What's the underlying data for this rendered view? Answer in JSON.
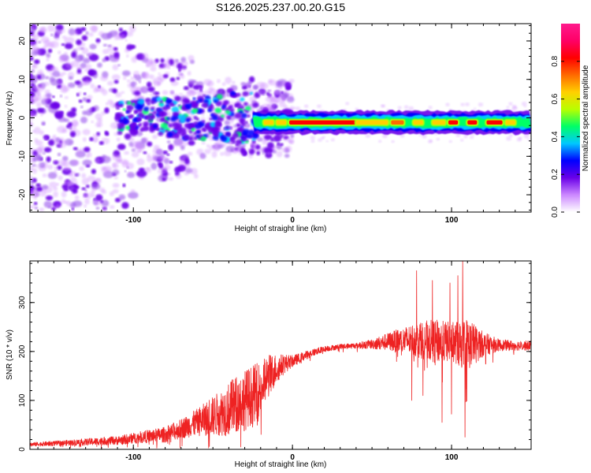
{
  "title": "S126.2025.237.00.20.G15",
  "colors": {
    "snr_line": "#ee2222",
    "background": "#ffffff",
    "colorbar_stops": [
      "#ffffff",
      "#cc88ff",
      "#6a00e8",
      "#0000ff",
      "#00c8ff",
      "#00ff66",
      "#b8ff00",
      "#ffd000",
      "#ff6a00",
      "#ff0000",
      "#ff0066",
      "#ff1a8c"
    ]
  },
  "chart_data": [
    {
      "type": "heatmap",
      "title": "S126.2025.237.00.20.G15",
      "xlabel": "Height of straight line (km)",
      "ylabel": "Frequency (Hz)",
      "xlim": [
        -165,
        150
      ],
      "ylim": [
        -24.5,
        24.5
      ],
      "xticks": [
        -100,
        0,
        100
      ],
      "yticks": [
        20,
        10,
        0,
        -10,
        -20
      ],
      "colorbar": {
        "label": "Normalized spectral amplitude",
        "range": [
          0,
          1
        ],
        "ticks": [
          "0.0",
          "0.2",
          "0.4",
          "0.6",
          "0.8"
        ],
        "tick_values": [
          0.0,
          0.2,
          0.4,
          0.6,
          0.8
        ]
      },
      "description_features": {
        "ridge_frequency_hz": -1.2,
        "ridge_start_km": -25,
        "ridge_end_km": 150,
        "noisy_region_end_km": -25
      }
    },
    {
      "type": "line",
      "xlabel": "Height of straight line (km)",
      "ylabel": "SNR (10 * v/v)",
      "xlim": [
        -165,
        150
      ],
      "ylim": [
        0,
        385
      ],
      "xticks": [
        -100,
        0,
        100
      ],
      "yticks": [
        0,
        100,
        200,
        300
      ],
      "series": [
        {
          "name": "SNR",
          "x": [
            -165,
            -150,
            -130,
            -110,
            -95,
            -80,
            -70,
            -60,
            -50,
            -40,
            -35,
            -30,
            -25,
            -20,
            -15,
            -10,
            -5,
            0,
            5,
            10,
            20,
            30,
            40,
            50,
            60,
            70,
            80,
            90,
            100,
            110,
            120,
            130,
            140,
            150
          ],
          "values": [
            10,
            12,
            15,
            18,
            25,
            30,
            42,
            55,
            68,
            82,
            92,
            100,
            112,
            125,
            150,
            165,
            175,
            180,
            187,
            195,
            205,
            210,
            212,
            215,
            220,
            222,
            225,
            220,
            220,
            215,
            215,
            213,
            212,
            212
          ],
          "noise_amplitude": [
            4,
            5,
            7,
            9,
            12,
            16,
            20,
            28,
            40,
            55,
            60,
            62,
            60,
            55,
            45,
            30,
            20,
            12,
            10,
            8,
            6,
            5,
            6,
            10,
            18,
            28,
            38,
            45,
            40,
            55,
            25,
            12,
            10,
            10
          ],
          "spikes": [
            {
              "x": 78,
              "y": 365
            },
            {
              "x": 88,
              "y": 345
            },
            {
              "x": 99,
              "y": 340
            },
            {
              "x": 104,
              "y": 355
            },
            {
              "x": 107,
              "y": 385
            },
            {
              "x": 108.5,
              "y": 25
            },
            {
              "x": 94,
              "y": 55
            },
            {
              "x": 75,
              "y": 100
            },
            {
              "x": 82,
              "y": 110
            },
            {
              "x": 100,
              "y": 72
            }
          ]
        }
      ]
    }
  ]
}
